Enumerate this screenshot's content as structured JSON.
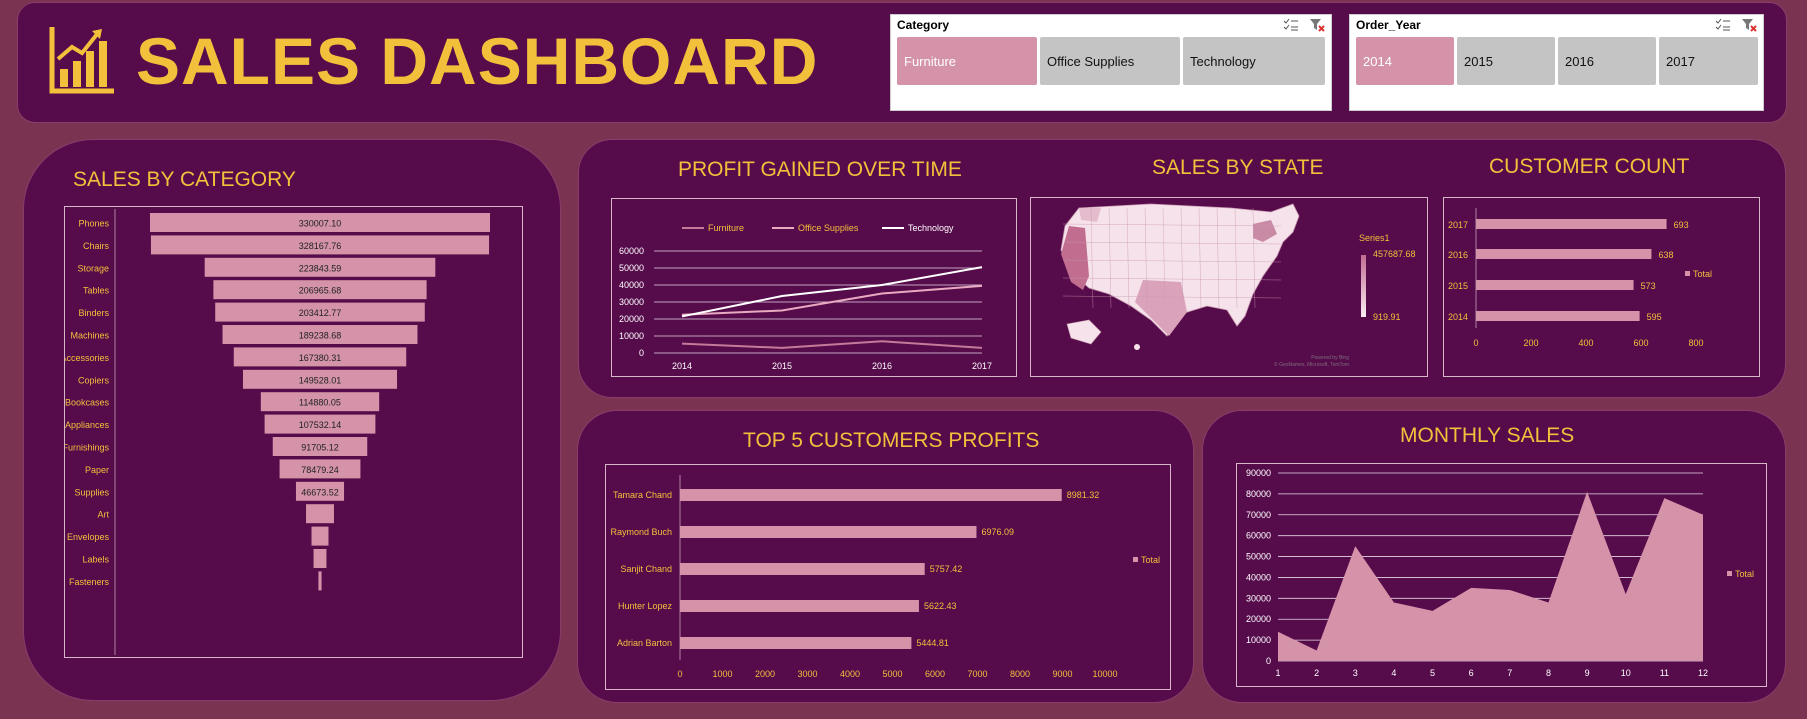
{
  "header": {
    "title": "SALES DASHBOARD",
    "logo_icon": "bar-chart-growth-icon"
  },
  "slicers": {
    "category": {
      "title": "Category",
      "items": [
        {
          "label": "Furniture",
          "selected": true
        },
        {
          "label": "Office Supplies",
          "selected": false
        },
        {
          "label": "Technology",
          "selected": false
        }
      ]
    },
    "order_year": {
      "title": "Order_Year",
      "items": [
        {
          "label": "2014",
          "selected": true
        },
        {
          "label": "2015",
          "selected": false
        },
        {
          "label": "2016",
          "selected": false
        },
        {
          "label": "2017",
          "selected": false
        }
      ]
    }
  },
  "colors": {
    "panel": "#560b4b",
    "accent": "#f3c03b",
    "bar": "#d493a8",
    "background": "#7a3350"
  },
  "chart_data": [
    {
      "id": "sales_by_category",
      "type": "bar",
      "title": "SALES BY CATEGORY",
      "orientation": "funnel",
      "categories": [
        "Phones",
        "Chairs",
        "Storage",
        "Tables",
        "Binders",
        "Machines",
        "Accessories",
        "Copiers",
        "Bookcases",
        "Appliances",
        "Furnishings",
        "Paper",
        "Supplies",
        "Art",
        "Envelopes",
        "Labels",
        "Fasteners"
      ],
      "values": [
        330007.1,
        328167.76,
        223843.59,
        206965.68,
        203412.77,
        189238.68,
        167380.31,
        149528.01,
        114880.05,
        107532.14,
        91705.12,
        78479.24,
        46673.52,
        27118.79,
        16476.4,
        12486.31,
        3024.28
      ],
      "labels": [
        "330007.10",
        "328167.76",
        "223843.59",
        "206965.68",
        "203412.77",
        "189238.68",
        "167380.31",
        "149528.01",
        "114880.05",
        "107532.14",
        "91705.12",
        "78479.24",
        "46673.52",
        "",
        "",
        "",
        ""
      ]
    },
    {
      "id": "profit_over_time",
      "type": "line",
      "title": "PROFIT GAINED OVER TIME",
      "legend": "top",
      "x": [
        "2014",
        "2015",
        "2016",
        "2017"
      ],
      "yticks": [
        "0",
        "10000",
        "20000",
        "30000",
        "40000",
        "50000",
        "60000"
      ],
      "ylim": [
        0,
        60000
      ],
      "series": [
        {
          "name": "Furniture",
          "values": [
            5500,
            3000,
            6900,
            3000
          ],
          "color": "#c47a98"
        },
        {
          "name": "Office Supplies",
          "values": [
            22500,
            25000,
            35000,
            39500
          ],
          "color": "#e8aac0"
        },
        {
          "name": "Technology",
          "values": [
            21500,
            33500,
            40000,
            50500
          ],
          "color": "#ffffff"
        }
      ]
    },
    {
      "id": "sales_by_state",
      "type": "heatmap",
      "title": "SALES BY STATE",
      "legend_title": "Series1",
      "max_label": "457687.68",
      "min_label": "919.91",
      "credit": "Powered by Bing",
      "credit2": "© GeoNames, Microsoft, TomTom"
    },
    {
      "id": "customer_count",
      "type": "bar",
      "title": "CUSTOMER COUNT",
      "orientation": "horizontal",
      "categories": [
        "2017",
        "2016",
        "2015",
        "2014"
      ],
      "values": [
        693,
        638,
        573,
        595
      ],
      "xticks": [
        "0",
        "200",
        "400",
        "600",
        "800"
      ],
      "xlim": [
        0,
        800
      ],
      "legend": "Total"
    },
    {
      "id": "top5_customers",
      "type": "bar",
      "title": "TOP 5 CUSTOMERS PROFITS",
      "orientation": "horizontal",
      "categories": [
        "Tamara Chand",
        "Raymond Buch",
        "Sanjit Chand",
        "Hunter Lopez",
        "Adrian Barton"
      ],
      "values": [
        8981.32,
        6976.09,
        5757.42,
        5622.43,
        5444.81
      ],
      "xticks": [
        "0",
        "1000",
        "2000",
        "3000",
        "4000",
        "5000",
        "6000",
        "7000",
        "8000",
        "9000",
        "10000"
      ],
      "xlim": [
        0,
        10000
      ],
      "legend": "Total"
    },
    {
      "id": "monthly_sales",
      "type": "area",
      "title": "MONTHLY SALES",
      "x": [
        "1",
        "2",
        "3",
        "4",
        "5",
        "6",
        "7",
        "8",
        "9",
        "10",
        "11",
        "12"
      ],
      "values": [
        14000,
        5000,
        55000,
        28000,
        24000,
        35000,
        34000,
        28000,
        81000,
        32000,
        78000,
        70000
      ],
      "yticks": [
        "0",
        "10000",
        "20000",
        "30000",
        "40000",
        "50000",
        "60000",
        "70000",
        "80000",
        "90000"
      ],
      "ylim": [
        0,
        90000
      ],
      "legend": "Total"
    }
  ]
}
